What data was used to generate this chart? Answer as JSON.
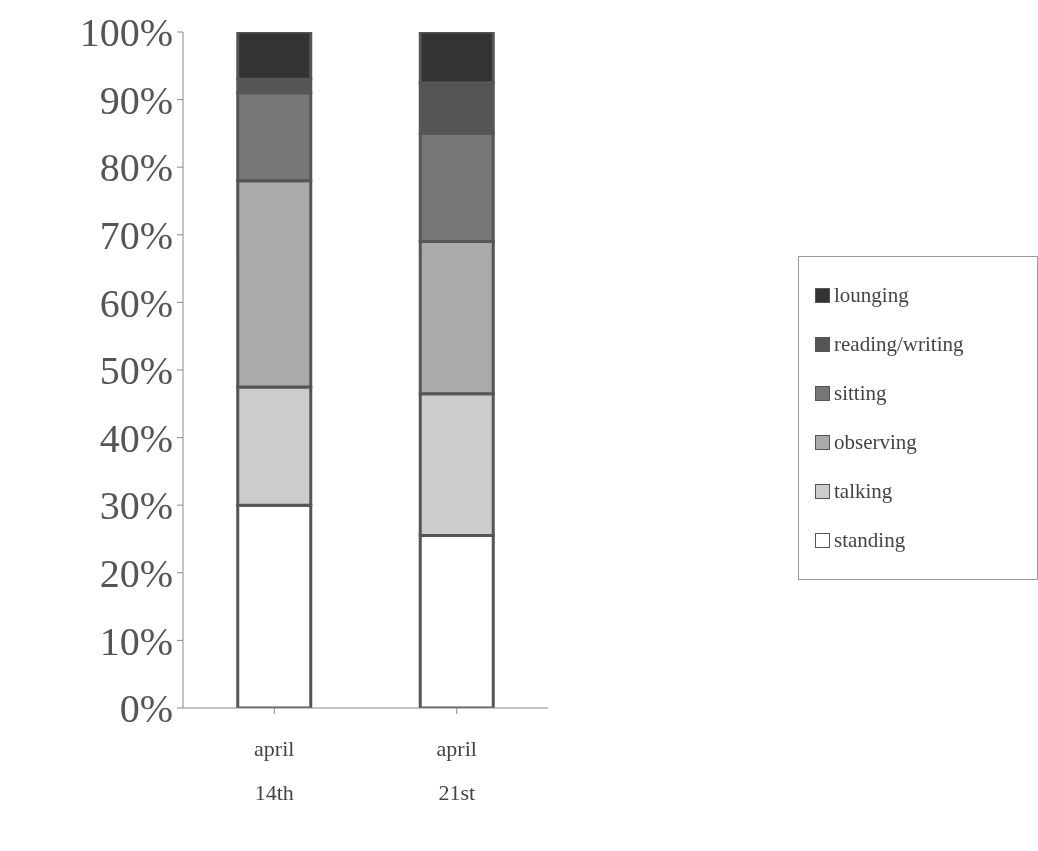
{
  "chart_data": {
    "type": "bar",
    "stacked": true,
    "categories": [
      "april 14th",
      "april 21st"
    ],
    "series": [
      {
        "name": "standing",
        "color": "#ffffff",
        "values": [
          30,
          25.5
        ]
      },
      {
        "name": "talking",
        "color": "#cccccc",
        "values": [
          17.5,
          21
        ]
      },
      {
        "name": "observing",
        "color": "#aaaaaa",
        "values": [
          30.5,
          22.5
        ]
      },
      {
        "name": "sitting",
        "color": "#777777",
        "values": [
          13,
          16
        ]
      },
      {
        "name": "reading/writing",
        "color": "#555555",
        "values": [
          2,
          7.5
        ]
      },
      {
        "name": "lounging",
        "color": "#333333",
        "values": [
          7,
          7.5
        ]
      }
    ],
    "ylim": [
      0,
      100
    ],
    "yticks": [
      {
        "value": 0,
        "label": "0%"
      },
      {
        "value": 10,
        "label": "10%"
      },
      {
        "value": 20,
        "label": "20%"
      },
      {
        "value": 30,
        "label": "30%"
      },
      {
        "value": 40,
        "label": "40%"
      },
      {
        "value": 50,
        "label": "50%"
      },
      {
        "value": 60,
        "label": "60%"
      },
      {
        "value": 70,
        "label": "70%"
      },
      {
        "value": 80,
        "label": "80%"
      },
      {
        "value": 90,
        "label": "90%"
      },
      {
        "value": 100,
        "label": "100%"
      }
    ],
    "grid": false,
    "legend": "right"
  }
}
